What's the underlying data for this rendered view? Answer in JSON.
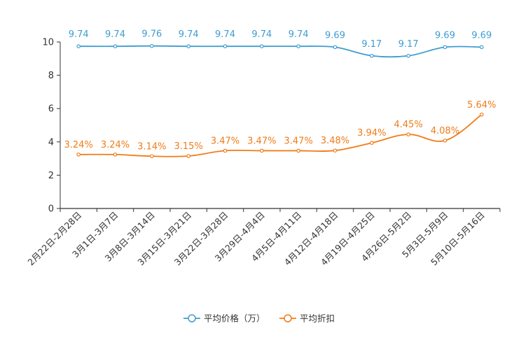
{
  "chart_data": {
    "type": "line",
    "categories": [
      "2月22日-2月28日",
      "3月1日-3月7日",
      "3月8日-3月14日",
      "3月15日-3月21日",
      "3月22日-3月28日",
      "3月29日-4月4日",
      "4月5日-4月11日",
      "4月12日-4月18日",
      "4月19日-4月25日",
      "4月26日-5月2日",
      "5月3日-5月9日",
      "5月10日-5月16日"
    ],
    "ylim": [
      0,
      10
    ],
    "yticks": [
      0,
      2,
      4,
      6,
      8,
      10
    ],
    "series": [
      {
        "name": "平均价格（万）",
        "color": "#3e9dd0",
        "values": [
          9.74,
          9.74,
          9.76,
          9.74,
          9.74,
          9.74,
          9.74,
          9.69,
          9.17,
          9.17,
          9.69,
          9.69
        ],
        "labels": [
          "9.74",
          "9.74",
          "9.76",
          "9.74",
          "9.74",
          "9.74",
          "9.74",
          "9.69",
          "9.17",
          "9.17",
          "9.69",
          "9.69"
        ]
      },
      {
        "name": "平均折扣",
        "color": "#f07c19",
        "values": [
          3.24,
          3.24,
          3.14,
          3.15,
          3.47,
          3.47,
          3.47,
          3.48,
          3.94,
          4.45,
          4.08,
          5.64
        ],
        "labels": [
          "3.24%",
          "3.24%",
          "3.14%",
          "3.15%",
          "3.47%",
          "3.47%",
          "3.47%",
          "3.48%",
          "3.94%",
          "4.45%",
          "4.08%",
          "5.64%"
        ]
      }
    ],
    "legend_position": "bottom-center"
  }
}
